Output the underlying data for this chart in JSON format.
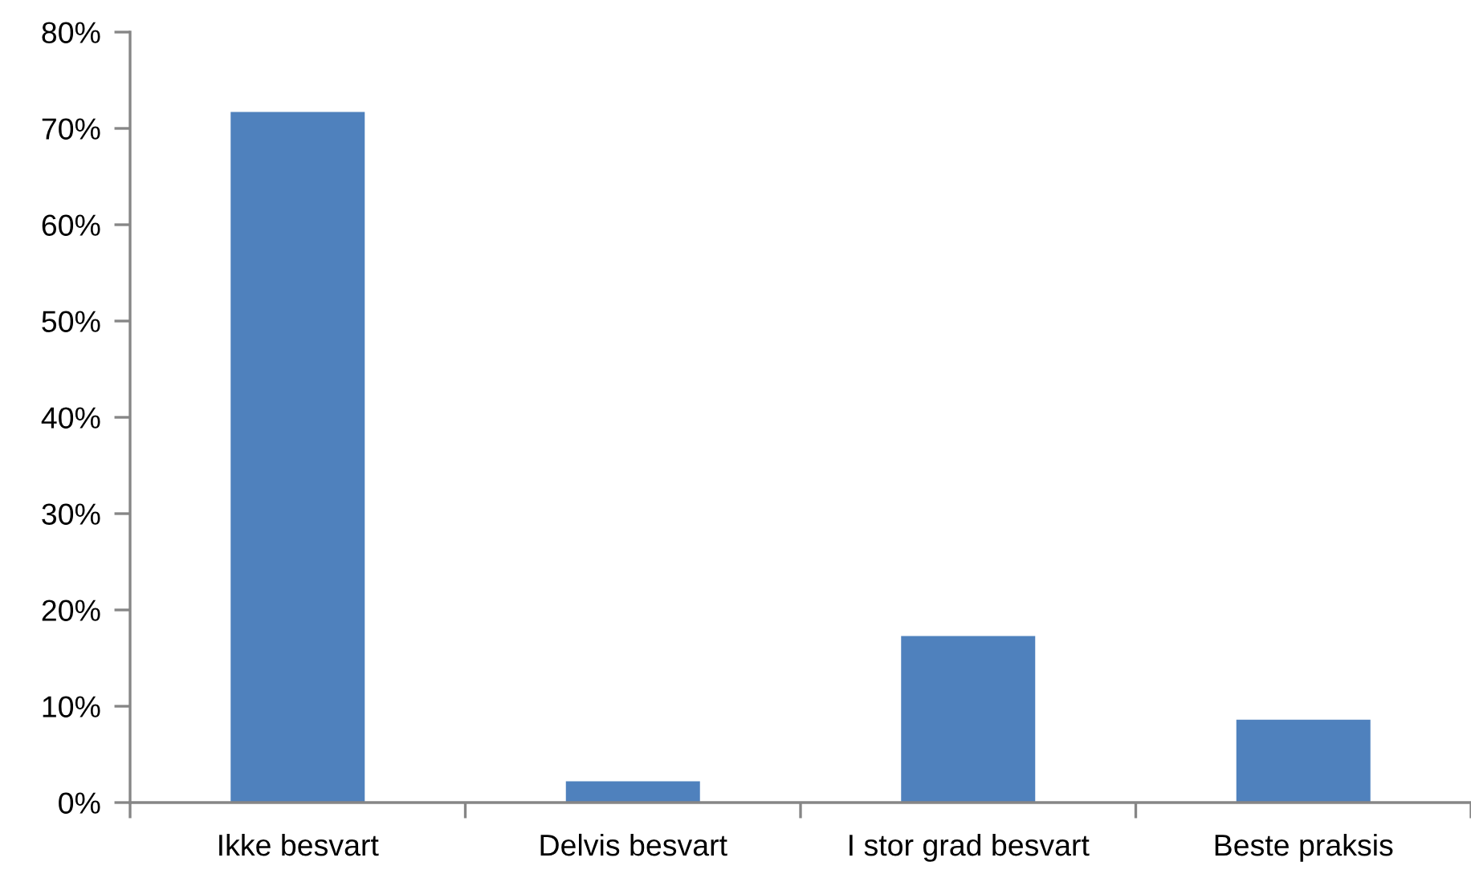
{
  "chart_data": {
    "type": "bar",
    "categories": [
      "Ikke besvart",
      "Delvis besvart",
      "I stor grad besvart",
      "Beste praksis"
    ],
    "values": [
      71.7,
      2.2,
      17.3,
      8.6
    ],
    "color": "#4f81bd",
    "ylim": [
      0,
      80
    ],
    "yticks": [
      {
        "value": 0,
        "label": "0%"
      },
      {
        "value": 10,
        "label": "10%"
      },
      {
        "value": 20,
        "label": "20%"
      },
      {
        "value": 30,
        "label": "30%"
      },
      {
        "value": 40,
        "label": "40%"
      },
      {
        "value": 50,
        "label": "50%"
      },
      {
        "value": 60,
        "label": "60%"
      },
      {
        "value": 70,
        "label": "70%"
      },
      {
        "value": 80,
        "label": "80%"
      }
    ],
    "grid": false,
    "legend": false
  }
}
